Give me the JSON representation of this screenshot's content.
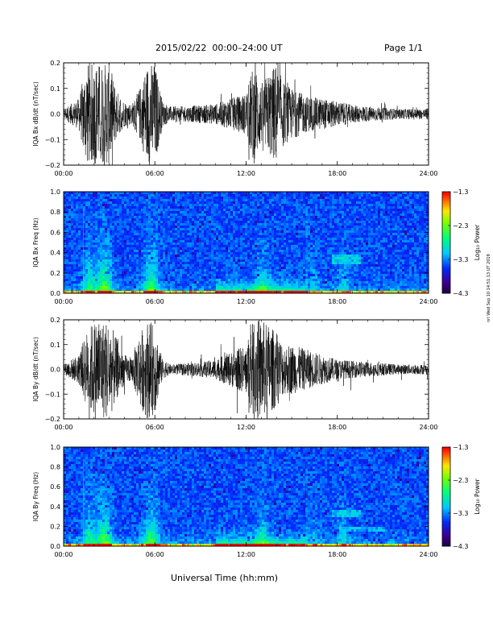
{
  "header": {
    "title": "2015/02/22  00:00–24:00 UT",
    "page": "Page 1/1"
  },
  "x_axis_label": "Universal Time (hh:mm)",
  "side_stamp": "nrl Wed Sep 10 14:51:13 UT 2019",
  "chart_data": [
    {
      "type": "line",
      "ylabel": "IQA Bx dB/dt (nT/sec)",
      "xlim": [
        0,
        24
      ],
      "x_ticks": [
        "00:00",
        "06:00",
        "12:00",
        "18:00",
        "24:00"
      ],
      "ylim": [
        -0.2,
        0.2
      ],
      "y_ticks": [
        "0.2",
        "0.1",
        "0.0",
        "−0.1",
        "−0.2"
      ],
      "envelope_hours": [
        0,
        1,
        1.5,
        2,
        2.5,
        3,
        3.5,
        4,
        4.5,
        5,
        5.5,
        6,
        6.5,
        7,
        8,
        9,
        10,
        11,
        12,
        12.5,
        13,
        13.5,
        14,
        14.5,
        15,
        16,
        17,
        18,
        19,
        20,
        21,
        22,
        23,
        24
      ],
      "envelope_amplitude": [
        0.02,
        0.06,
        0.2,
        0.2,
        0.2,
        0.2,
        0.09,
        0.05,
        0.04,
        0.1,
        0.2,
        0.2,
        0.05,
        0.03,
        0.03,
        0.035,
        0.04,
        0.06,
        0.08,
        0.2,
        0.12,
        0.16,
        0.2,
        0.12,
        0.1,
        0.07,
        0.06,
        0.05,
        0.035,
        0.03,
        0.025,
        0.02,
        0.02,
        0.02
      ]
    },
    {
      "type": "heatmap",
      "ylabel": "IQA Bx Freq (Hz)",
      "xlim": [
        0,
        24
      ],
      "x_ticks": [
        "00:00",
        "06:00",
        "12:00",
        "18:00",
        "24:00"
      ],
      "ylim": [
        0,
        1
      ],
      "y_ticks": [
        "1.0",
        "0.8",
        "0.6",
        "0.4",
        "0.2",
        "0.0"
      ],
      "colorbar_label": "Log₁₀ Power",
      "colorbar_ticks": [
        "−1.3",
        "−2.3",
        "−3.3",
        "−4.3"
      ],
      "colorbar_range": [
        -4.3,
        -1.3
      ]
    },
    {
      "type": "line",
      "ylabel": "IQA By dB/dt (nT/sec)",
      "xlim": [
        0,
        24
      ],
      "x_ticks": [
        "00:00",
        "06:00",
        "12:00",
        "18:00",
        "24:00"
      ],
      "ylim": [
        -0.2,
        0.2
      ],
      "y_ticks": [
        "0.2",
        "0.1",
        "0.0",
        "−0.1",
        "−0.2"
      ],
      "envelope_hours": [
        0,
        1,
        1.5,
        2,
        2.5,
        3,
        3.5,
        4,
        4.5,
        5,
        5.5,
        6,
        6.5,
        7,
        8,
        9,
        10,
        11,
        12,
        12.5,
        13,
        13.5,
        14,
        14.5,
        15,
        16,
        17,
        18,
        19,
        20,
        21,
        22,
        23,
        24
      ],
      "envelope_amplitude": [
        0.02,
        0.06,
        0.15,
        0.2,
        0.2,
        0.2,
        0.12,
        0.06,
        0.05,
        0.15,
        0.2,
        0.18,
        0.04,
        0.02,
        0.025,
        0.03,
        0.04,
        0.07,
        0.1,
        0.2,
        0.2,
        0.18,
        0.15,
        0.1,
        0.1,
        0.08,
        0.06,
        0.04,
        0.035,
        0.03,
        0.025,
        0.02,
        0.02,
        0.02
      ]
    },
    {
      "type": "heatmap",
      "ylabel": "IQA By Freq (Hz)",
      "xlim": [
        0,
        24
      ],
      "x_ticks": [
        "00:00",
        "06:00",
        "12:00",
        "18:00",
        "24:00"
      ],
      "ylim": [
        0,
        1
      ],
      "y_ticks": [
        "1.0",
        "0.8",
        "0.6",
        "0.4",
        "0.2",
        "0.0"
      ],
      "colorbar_label": "Log₁₀ Power",
      "colorbar_ticks": [
        "−1.3",
        "−2.3",
        "−3.3",
        "−4.3"
      ],
      "colorbar_range": [
        -4.3,
        -1.3
      ]
    }
  ]
}
